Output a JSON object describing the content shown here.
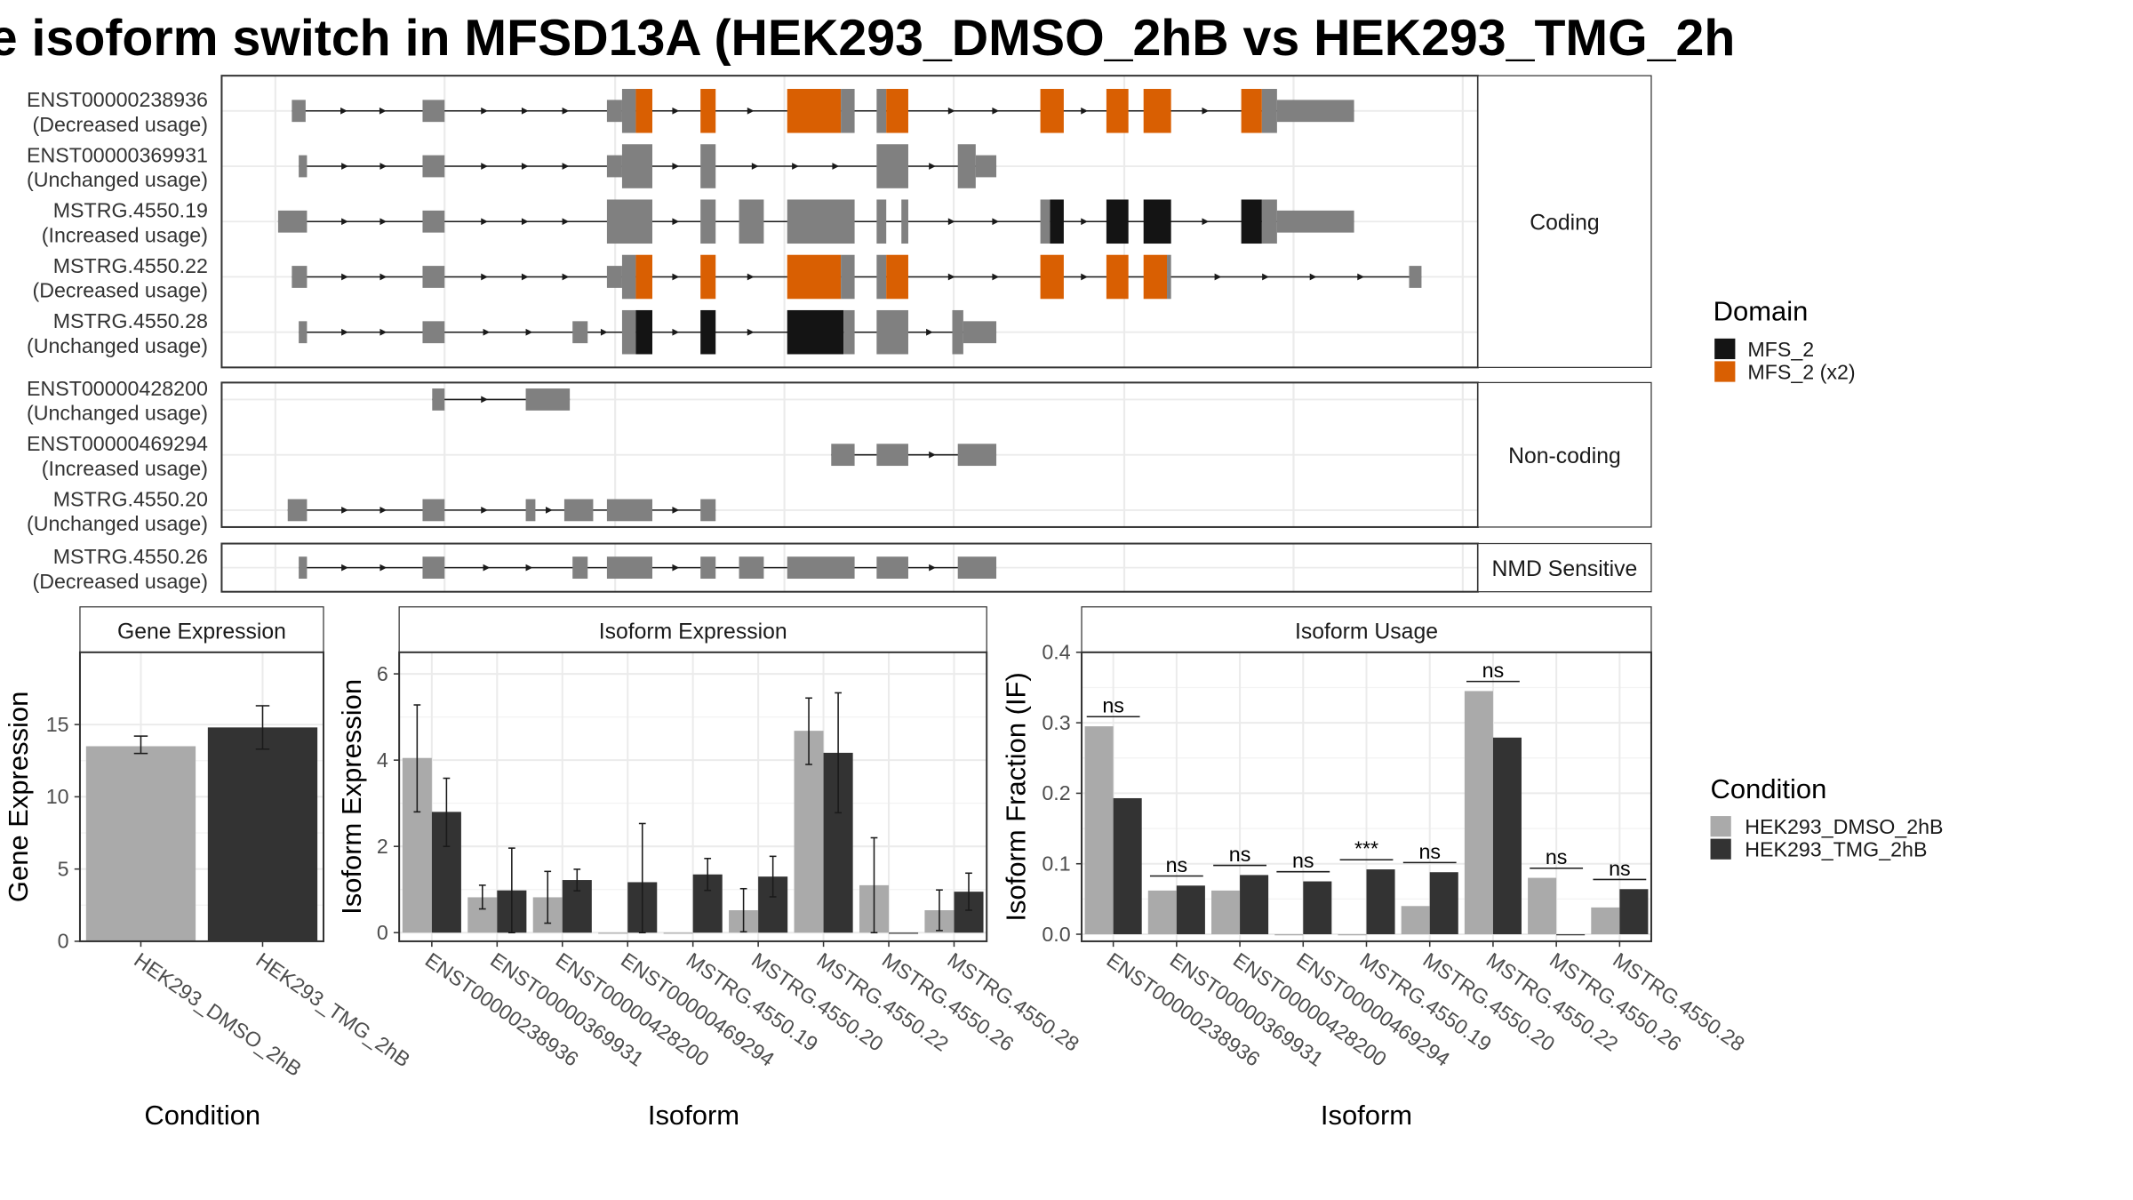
{
  "title": "e isoform switch in MFSD13A (HEK293_DMSO_2hB vs HEK293_TMG_2h",
  "colors": {
    "exon": "#808080",
    "domain_MFS_2": "#141414",
    "domain_MFS_2_x2": "#D95F02",
    "cond_dmso": "#AAAAAA",
    "cond_tmg": "#333333",
    "grid": "#EBEBEB",
    "strip_fill": "#FFFFFF",
    "panel_border": "#333333"
  },
  "structure": {
    "groups": [
      {
        "name": "Coding",
        "isoforms": [
          {
            "id": "ENST00000238936",
            "usage": "(Decreased usage)",
            "exons": [
              [
                212,
                222,
                "n"
              ],
              [
                307,
                323,
                "n"
              ],
              [
                441,
                452,
                "n"
              ],
              [
                452,
                462,
                "c"
              ],
              [
                462,
                474,
                "d2"
              ],
              [
                509,
                520,
                "d2"
              ],
              [
                572,
                611,
                "d2"
              ],
              [
                611,
                621,
                "c"
              ],
              [
                637,
                644,
                "c"
              ],
              [
                644,
                660,
                "d2"
              ],
              [
                756,
                773,
                "d2"
              ],
              [
                804,
                820,
                "d2"
              ],
              [
                831,
                851,
                "d2"
              ],
              [
                902,
                917,
                "d2"
              ],
              [
                917,
                928,
                "c"
              ],
              [
                928,
                984,
                "n"
              ]
            ]
          },
          {
            "id": "ENST00000369931",
            "usage": "(Unchanged usage)",
            "exons": [
              [
                217,
                223,
                "n"
              ],
              [
                307,
                323,
                "n"
              ],
              [
                441,
                452,
                "n"
              ],
              [
                452,
                474,
                "c"
              ],
              [
                509,
                520,
                "c"
              ],
              [
                637,
                660,
                "c"
              ],
              [
                696,
                709,
                "c"
              ],
              [
                709,
                724,
                "n"
              ]
            ]
          },
          {
            "id": "MSTRG.4550.19",
            "usage": "(Increased usage)",
            "exons": [
              [
                202,
                223,
                "n"
              ],
              [
                307,
                323,
                "n"
              ],
              [
                441,
                474,
                "c"
              ],
              [
                509,
                520,
                "c"
              ],
              [
                537,
                555,
                "c"
              ],
              [
                572,
                621,
                "c"
              ],
              [
                637,
                644,
                "c"
              ],
              [
                655,
                660,
                "c"
              ],
              [
                756,
                763,
                "c"
              ],
              [
                763,
                773,
                "d1"
              ],
              [
                804,
                820,
                "d1"
              ],
              [
                831,
                851,
                "d1"
              ],
              [
                902,
                917,
                "d1"
              ],
              [
                917,
                928,
                "c"
              ],
              [
                928,
                984,
                "n"
              ]
            ]
          },
          {
            "id": "MSTRG.4550.22",
            "usage": "(Decreased usage)",
            "exons": [
              [
                212,
                223,
                "n"
              ],
              [
                307,
                323,
                "n"
              ],
              [
                441,
                452,
                "n"
              ],
              [
                452,
                462,
                "c"
              ],
              [
                462,
                474,
                "d2"
              ],
              [
                509,
                520,
                "d2"
              ],
              [
                572,
                611,
                "d2"
              ],
              [
                611,
                621,
                "c"
              ],
              [
                637,
                644,
                "c"
              ],
              [
                644,
                660,
                "d2"
              ],
              [
                756,
                773,
                "d2"
              ],
              [
                804,
                820,
                "d2"
              ],
              [
                831,
                848,
                "d2"
              ],
              [
                848,
                851,
                "c"
              ],
              [
                1024,
                1033,
                "n"
              ]
            ]
          },
          {
            "id": "MSTRG.4550.28",
            "usage": "(Unchanged usage)",
            "exons": [
              [
                217,
                223,
                "n"
              ],
              [
                307,
                323,
                "n"
              ],
              [
                416,
                427,
                "n"
              ],
              [
                452,
                462,
                "c"
              ],
              [
                462,
                474,
                "d1"
              ],
              [
                509,
                520,
                "d1"
              ],
              [
                572,
                613,
                "d1"
              ],
              [
                613,
                621,
                "c"
              ],
              [
                637,
                660,
                "c"
              ],
              [
                692,
                700,
                "c"
              ],
              [
                700,
                724,
                "n"
              ]
            ]
          }
        ]
      },
      {
        "name": "Non-coding",
        "isoforms": [
          {
            "id": "ENST00000428200",
            "usage": "(Unchanged usage)",
            "exons": [
              [
                314,
                323,
                "n"
              ],
              [
                382,
                414,
                "n"
              ]
            ]
          },
          {
            "id": "ENST00000469294",
            "usage": "(Increased usage)",
            "exons": [
              [
                604,
                621,
                "n"
              ],
              [
                637,
                660,
                "n"
              ],
              [
                696,
                724,
                "n"
              ]
            ]
          },
          {
            "id": "MSTRG.4550.20",
            "usage": "(Unchanged usage)",
            "exons": [
              [
                209,
                223,
                "n"
              ],
              [
                307,
                323,
                "n"
              ],
              [
                382,
                389,
                "n"
              ],
              [
                410,
                431,
                "n"
              ],
              [
                441,
                474,
                "n"
              ],
              [
                509,
                520,
                "n"
              ]
            ]
          }
        ]
      },
      {
        "name": "NMD Sensitive",
        "isoforms": [
          {
            "id": "MSTRG.4550.26",
            "usage": "(Decreased usage)",
            "exons": [
              [
                217,
                223,
                "n"
              ],
              [
                307,
                323,
                "n"
              ],
              [
                416,
                427,
                "n"
              ],
              [
                441,
                474,
                "n"
              ],
              [
                509,
                520,
                "n"
              ],
              [
                537,
                555,
                "n"
              ],
              [
                572,
                621,
                "n"
              ],
              [
                637,
                660,
                "n"
              ],
              [
                696,
                724,
                "n"
              ]
            ]
          }
        ]
      }
    ]
  },
  "legend_domain": {
    "title": "Domain",
    "items": [
      {
        "label": "MFS_2",
        "color": "#141414"
      },
      {
        "label": "MFS_2 (x2)",
        "color": "#D95F02"
      }
    ]
  },
  "legend_condition": {
    "title": "Condition",
    "items": [
      {
        "label": "HEK293_DMSO_2hB",
        "color": "#AAAAAA"
      },
      {
        "label": "HEK293_TMG_2hB",
        "color": "#333333"
      }
    ]
  },
  "chart_data": [
    {
      "type": "bar",
      "title": "Gene Expression",
      "xlabel": "Condition",
      "ylabel": "Gene Expression",
      "ylim": [
        0,
        20
      ],
      "yticks": [
        0,
        5,
        10,
        15
      ],
      "categories": [
        "HEK293_DMSO_2hB",
        "HEK293_TMG_2hB"
      ],
      "values": [
        13.5,
        14.8
      ],
      "errors": [
        [
          13.0,
          14.2
        ],
        [
          13.3,
          16.3
        ]
      ]
    },
    {
      "type": "bar",
      "title": "Isoform Expression",
      "xlabel": "Isoform",
      "ylabel": "Isoform Expression",
      "ylim": [
        -0.2,
        6.5
      ],
      "yticks": [
        0,
        2,
        4,
        6
      ],
      "categories": [
        "ENST00000238936",
        "ENST00000369931",
        "ENST00000428200",
        "ENST00000469294",
        "MSTRG.4550.19",
        "MSTRG.4550.20",
        "MSTRG.4550.22",
        "MSTRG.4550.26",
        "MSTRG.4550.28"
      ],
      "series": [
        {
          "name": "HEK293_DMSO_2hB",
          "values": [
            4.05,
            0.82,
            0.82,
            0.0,
            0.0,
            0.52,
            4.68,
            1.1,
            0.52
          ],
          "errors": [
            [
              2.8,
              5.28
            ],
            [
              0.55,
              1.1
            ],
            [
              0.22,
              1.42
            ],
            [
              0,
              0
            ],
            [
              0,
              0
            ],
            [
              0.02,
              1.02
            ],
            [
              3.9,
              5.44
            ],
            [
              0.0,
              2.2
            ],
            [
              0.05,
              0.99
            ]
          ]
        },
        {
          "name": "HEK293_TMG_2hB",
          "values": [
            2.8,
            0.98,
            1.22,
            1.17,
            1.35,
            1.3,
            4.17,
            0.0,
            0.95
          ],
          "errors": [
            [
              2.0,
              3.58
            ],
            [
              0.0,
              1.96
            ],
            [
              0.97,
              1.47
            ],
            [
              0.0,
              2.53
            ],
            [
              0.98,
              1.72
            ],
            [
              0.83,
              1.77
            ],
            [
              2.78,
              5.56
            ],
            [
              0,
              0
            ],
            [
              0.52,
              1.38
            ]
          ]
        }
      ]
    },
    {
      "type": "bar",
      "title": "Isoform Usage",
      "xlabel": "Isoform",
      "ylabel": "Isoform Fraction (IF)",
      "ylim": [
        -0.01,
        0.4
      ],
      "yticks": [
        0.0,
        0.1,
        0.2,
        0.3,
        0.4
      ],
      "ytick_labels": [
        "0.0",
        "0.1",
        "0.2",
        "0.3",
        "0.4"
      ],
      "categories": [
        "ENST00000238936",
        "ENST00000369931",
        "ENST00000428200",
        "ENST00000469294",
        "MSTRG.4550.19",
        "MSTRG.4550.20",
        "MSTRG.4550.22",
        "MSTRG.4550.26",
        "MSTRG.4550.28"
      ],
      "series": [
        {
          "name": "HEK293_DMSO_2hB",
          "values": [
            0.295,
            0.062,
            0.062,
            0.0,
            0.0,
            0.04,
            0.345,
            0.08,
            0.038
          ]
        },
        {
          "name": "HEK293_TMG_2hB",
          "values": [
            0.193,
            0.069,
            0.084,
            0.075,
            0.092,
            0.088,
            0.279,
            0.0,
            0.064
          ]
        }
      ],
      "significance": [
        "ns",
        "ns",
        "ns",
        "ns",
        "***",
        "ns",
        "ns",
        "ns",
        "ns"
      ]
    }
  ]
}
